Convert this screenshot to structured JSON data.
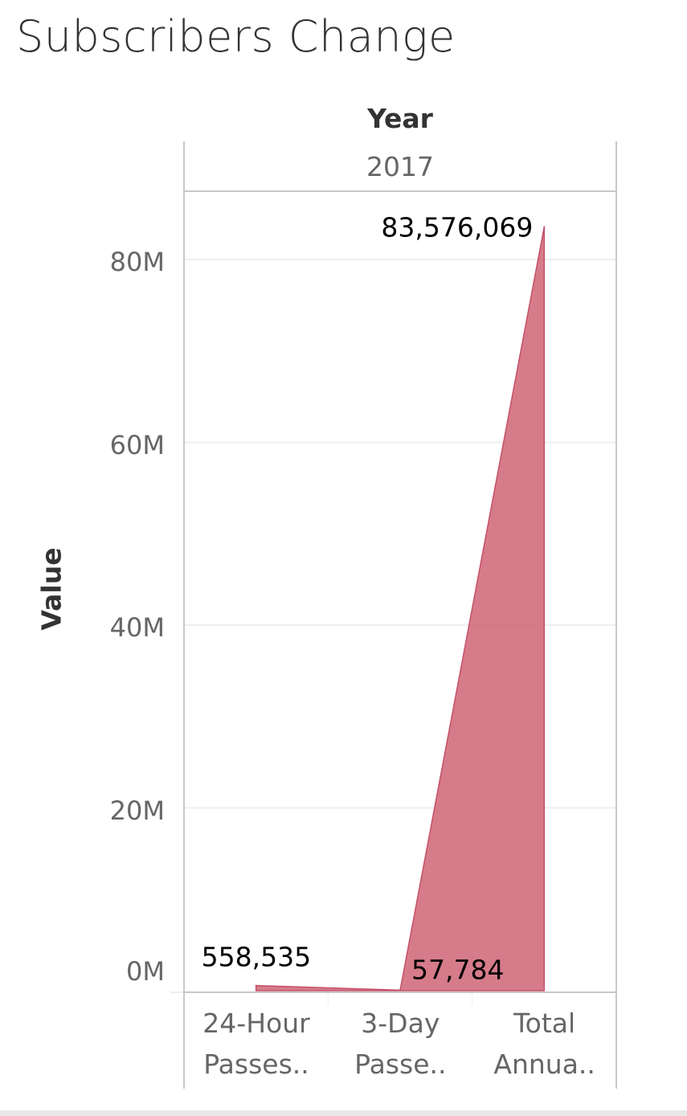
{
  "title": "Subscribers Change",
  "chart_data": {
    "type": "area",
    "title": "Subscribers Change",
    "column_header": "Year",
    "column_value": "2017",
    "ylabel": "Value",
    "ylim": [
      -2000000,
      88000000
    ],
    "yticks": [
      0,
      20000000,
      40000000,
      60000000,
      80000000
    ],
    "ytick_labels": [
      "0M",
      "20M",
      "40M",
      "60M",
      "80M"
    ],
    "categories": [
      {
        "line1": "24-Hour",
        "line2": "Passes.."
      },
      {
        "line1": "3-Day",
        "line2": "Passe.."
      },
      {
        "line1": "Total",
        "line2": "Annua.."
      }
    ],
    "values": [
      558535,
      57784,
      83576069
    ],
    "data_labels": [
      "558,535",
      "57,784",
      "83,576,069"
    ],
    "grid": true,
    "color": "#d0697a"
  }
}
